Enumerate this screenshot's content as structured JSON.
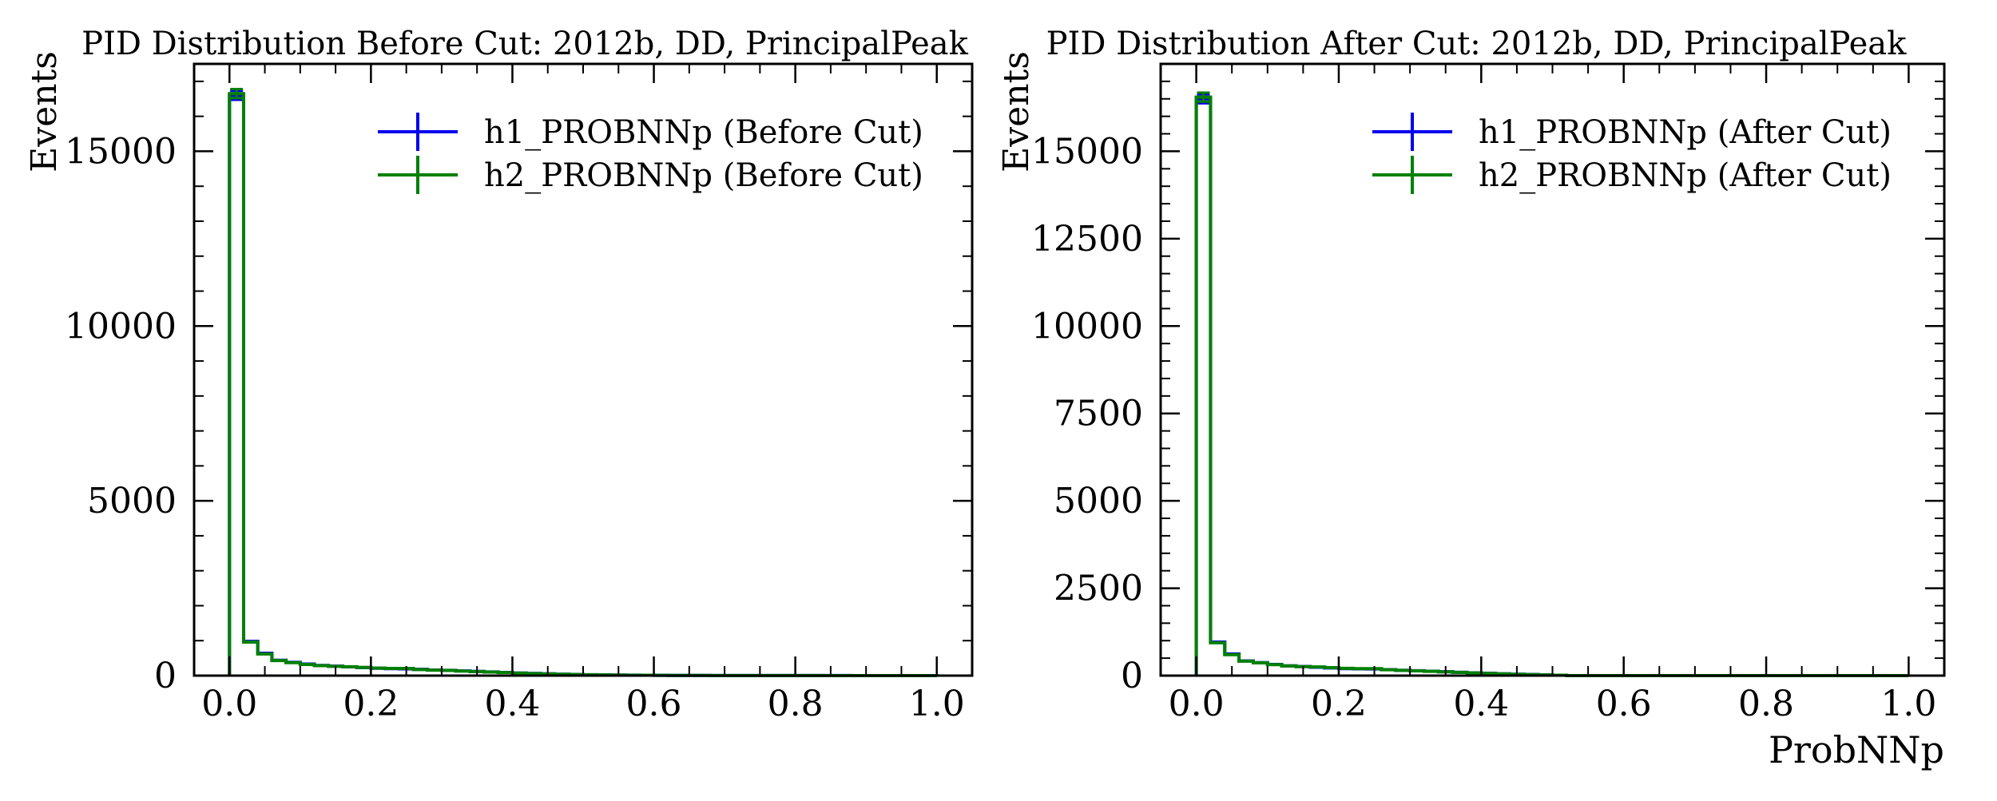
{
  "figure": {
    "panels": [
      {
        "title": "PID Distribution Before Cut: 2012b, DD, PrincipalPeak",
        "ylabel": "Events",
        "xlabel": "",
        "legend": [
          "h1_PROBNNp (Before Cut)",
          "h2_PROBNNp (Before Cut)"
        ]
      },
      {
        "title": "PID Distribution After Cut: 2012b, DD, PrincipalPeak",
        "ylabel": "Events",
        "xlabel": "ProbNNp",
        "legend": [
          "h1_PROBNNp (After Cut)",
          "h2_PROBNNp (After Cut)"
        ]
      }
    ]
  },
  "colors": {
    "h1": "#0000ee",
    "h2": "#008000",
    "axis": "#000000"
  },
  "chart_data": [
    {
      "type": "histogram",
      "title": "PID Distribution Before Cut: 2012b, DD, PrincipalPeak",
      "xlabel": "",
      "ylabel": "Events",
      "xlim": [
        -0.05,
        1.05
      ],
      "ylim": [
        0,
        17500
      ],
      "xticks": [
        0.0,
        0.2,
        0.4,
        0.6,
        0.8,
        1.0
      ],
      "xtick_labels": [
        "0.0",
        "0.2",
        "0.4",
        "0.6",
        "0.8",
        "1.0"
      ],
      "yticks": [
        0,
        5000,
        10000,
        15000
      ],
      "ytick_labels": [
        "0",
        "5000",
        "10000",
        "15000"
      ],
      "bin_edges": [
        0.0,
        0.02,
        0.04,
        0.06,
        0.08,
        0.1,
        0.12,
        0.14,
        0.16,
        0.18,
        0.2,
        0.22,
        0.24,
        0.26,
        0.28,
        0.3,
        0.32,
        0.34,
        0.36,
        0.38,
        0.4,
        0.42,
        0.44,
        0.46,
        0.48,
        0.5,
        0.52,
        0.54,
        0.56,
        0.58,
        0.6,
        0.62,
        0.64,
        0.66,
        0.68,
        0.7,
        0.72,
        0.74,
        0.76,
        0.78,
        0.8,
        0.82,
        0.84,
        0.86,
        0.88,
        0.9,
        0.92,
        0.94,
        0.96,
        0.98,
        1.0
      ],
      "series": [
        {
          "name": "h1_PROBNNp (Before Cut)",
          "color": "#0000ee",
          "values": [
            16600,
            980,
            640,
            440,
            380,
            330,
            290,
            270,
            250,
            230,
            210,
            200,
            195,
            180,
            160,
            150,
            135,
            120,
            105,
            90,
            75,
            62,
            50,
            40,
            32,
            25,
            20,
            16,
            13,
            11,
            9,
            7,
            6,
            5,
            4,
            4,
            3,
            3,
            3,
            2,
            2,
            2,
            2,
            2,
            1,
            1,
            1,
            1,
            1,
            1
          ]
        },
        {
          "name": "h2_PROBNNp (Before Cut)",
          "color": "#008000",
          "values": [
            16650,
            960,
            620,
            430,
            370,
            320,
            285,
            265,
            255,
            235,
            215,
            205,
            205,
            175,
            158,
            148,
            130,
            118,
            102,
            88,
            72,
            60,
            48,
            38,
            30,
            24,
            19,
            15,
            12,
            10,
            8,
            7,
            6,
            5,
            4,
            3,
            3,
            3,
            2,
            2,
            2,
            2,
            1,
            1,
            1,
            1,
            1,
            1,
            1,
            1
          ]
        }
      ]
    },
    {
      "type": "histogram",
      "title": "PID Distribution After Cut: 2012b, DD, PrincipalPeak",
      "xlabel": "ProbNNp",
      "ylabel": "Events",
      "xlim": [
        -0.05,
        1.05
      ],
      "ylim": [
        0,
        17500
      ],
      "xticks": [
        0.0,
        0.2,
        0.4,
        0.6,
        0.8,
        1.0
      ],
      "xtick_labels": [
        "0.0",
        "0.2",
        "0.4",
        "0.6",
        "0.8",
        "1.0"
      ],
      "yticks": [
        0,
        2500,
        5000,
        7500,
        10000,
        12500,
        15000
      ],
      "ytick_labels": [
        "0",
        "2500",
        "5000",
        "7500",
        "10000",
        "12500",
        "15000"
      ],
      "bin_edges": [
        0.0,
        0.02,
        0.04,
        0.06,
        0.08,
        0.1,
        0.12,
        0.14,
        0.16,
        0.18,
        0.2,
        0.22,
        0.24,
        0.26,
        0.28,
        0.3,
        0.32,
        0.34,
        0.36,
        0.38,
        0.4,
        0.42,
        0.44,
        0.46,
        0.48,
        0.5,
        0.52,
        0.54,
        0.56,
        0.58,
        0.6,
        0.62,
        0.64,
        0.66,
        0.68,
        0.7,
        0.72,
        0.74,
        0.76,
        0.78,
        0.8,
        0.82,
        0.84,
        0.86,
        0.88,
        0.9,
        0.92,
        0.94,
        0.96,
        0.98,
        1.0
      ],
      "series": [
        {
          "name": "h1_PROBNNp (After Cut)",
          "color": "#0000ee",
          "values": [
            16500,
            960,
            620,
            420,
            370,
            320,
            280,
            260,
            240,
            220,
            200,
            195,
            190,
            170,
            150,
            140,
            125,
            110,
            95,
            80,
            65,
            52,
            40,
            30,
            20,
            12,
            0,
            0,
            0,
            0,
            0,
            0,
            0,
            0,
            0,
            0,
            0,
            0,
            0,
            0,
            0,
            0,
            0,
            0,
            0,
            0,
            0,
            0,
            0,
            0
          ]
        },
        {
          "name": "h2_PROBNNp (After Cut)",
          "color": "#008000",
          "values": [
            16550,
            940,
            600,
            415,
            365,
            315,
            278,
            258,
            248,
            228,
            208,
            200,
            200,
            168,
            150,
            138,
            122,
            108,
            93,
            78,
            63,
            50,
            38,
            28,
            18,
            10,
            0,
            0,
            0,
            0,
            0,
            0,
            0,
            0,
            0,
            0,
            0,
            0,
            0,
            0,
            0,
            0,
            0,
            0,
            0,
            0,
            0,
            0,
            0,
            0
          ]
        }
      ]
    }
  ]
}
